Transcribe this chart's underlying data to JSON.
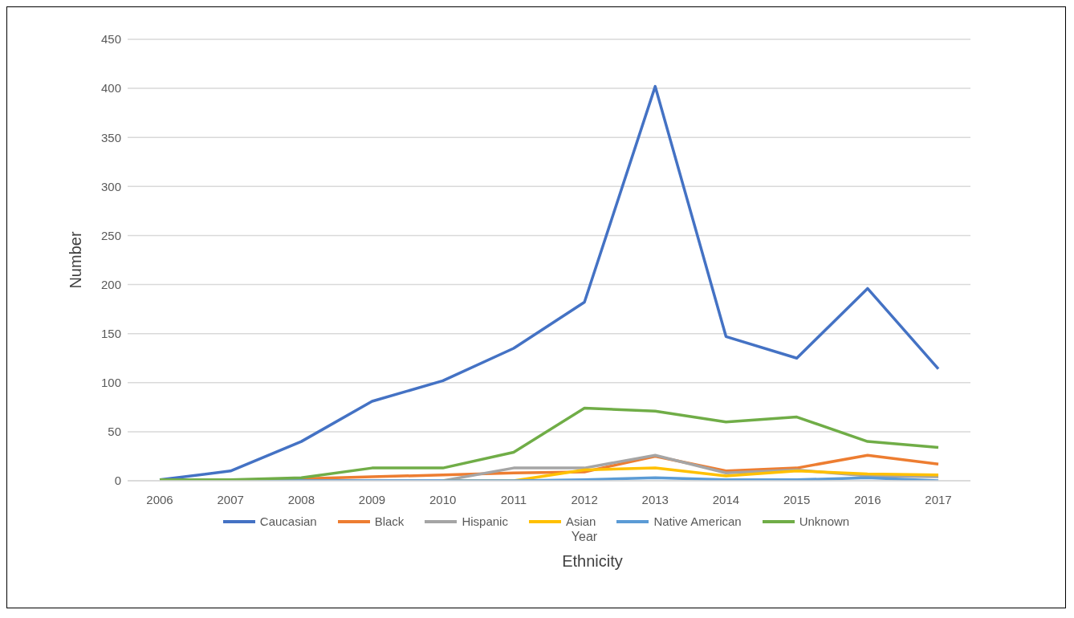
{
  "chart_data": {
    "type": "line",
    "xlabel": "Year",
    "ylabel": "Number",
    "legend_title": "Ethnicity",
    "categories": [
      "2006",
      "2007",
      "2008",
      "2009",
      "2010",
      "2011",
      "2012",
      "2013",
      "2014",
      "2015",
      "2016",
      "2017"
    ],
    "series": [
      {
        "name": "Caucasian",
        "color": "#4472c4",
        "values": [
          1,
          10,
          40,
          81,
          102,
          135,
          182,
          402,
          147,
          125,
          196,
          114
        ]
      },
      {
        "name": "Black",
        "color": "#ed7d31",
        "values": [
          0,
          0,
          2,
          4,
          6,
          8,
          9,
          25,
          10,
          13,
          26,
          17
        ]
      },
      {
        "name": "Hispanic",
        "color": "#a5a5a5",
        "values": [
          0,
          0,
          0,
          0,
          0,
          13,
          13,
          26,
          8,
          11,
          5,
          4
        ]
      },
      {
        "name": "Asian",
        "color": "#ffc000",
        "values": [
          null,
          null,
          null,
          null,
          0,
          0,
          11,
          13,
          5,
          10,
          7,
          6
        ]
      },
      {
        "name": "Native American",
        "color": "#5b9bd5",
        "values": [
          0,
          0,
          0,
          0,
          0,
          0,
          1,
          3,
          1,
          1,
          3,
          0
        ]
      },
      {
        "name": "Unknown",
        "color": "#70ad47",
        "values": [
          1,
          1,
          3,
          13,
          13,
          29,
          74,
          71,
          60,
          65,
          40,
          34
        ]
      }
    ],
    "ylim": [
      0,
      450
    ],
    "yticks": [
      0,
      50,
      100,
      150,
      200,
      250,
      300,
      350,
      400,
      450
    ],
    "grid": "y",
    "legend": "bottom",
    "marker": "none",
    "line_style": "solid"
  }
}
